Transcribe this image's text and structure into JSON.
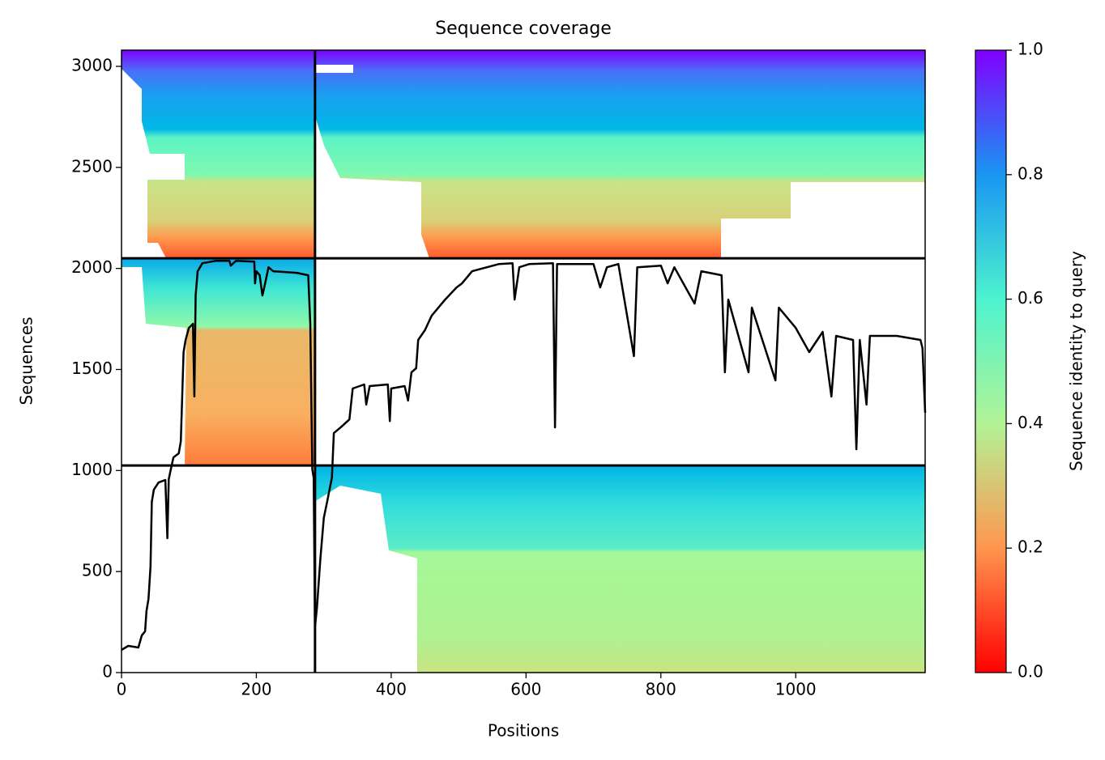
{
  "chart_data": {
    "type": "line",
    "title": "Sequence coverage",
    "x_label": "Positions",
    "y_label": "Sequences",
    "color": "#000000",
    "xlim": [
      0,
      1192
    ],
    "ylim": [
      0,
      3080
    ],
    "xticks": [
      0,
      200,
      400,
      600,
      800,
      1000
    ],
    "yticks": [
      0,
      500,
      1000,
      1500,
      2000,
      2500,
      3000
    ],
    "chain_breaks": {
      "x": [
        287
      ],
      "y": [
        1025,
        2050
      ]
    },
    "x": [
      0,
      10,
      25,
      30,
      35,
      37,
      40,
      43,
      45,
      48,
      55,
      65,
      68,
      70,
      73,
      77,
      85,
      88,
      92,
      95,
      100,
      106,
      108,
      110,
      113,
      120,
      140,
      160,
      162,
      170,
      197,
      198,
      200,
      205,
      209,
      213,
      218,
      225,
      260,
      277,
      280,
      283,
      285,
      287,
      290,
      295,
      300,
      305,
      312,
      315,
      325,
      338,
      343,
      360,
      363,
      368,
      395,
      398,
      400,
      420,
      425,
      430,
      437,
      440,
      450,
      460,
      480,
      497,
      505,
      520,
      560,
      580,
      583,
      590,
      605,
      640,
      643,
      646,
      700,
      710,
      720,
      737,
      760,
      765,
      800,
      810,
      820,
      850,
      860,
      890,
      895,
      900,
      930,
      935,
      970,
      975,
      1000,
      1020,
      1040,
      1053,
      1060,
      1085,
      1090,
      1095,
      1105,
      1110,
      1150,
      1185,
      1188,
      1192
    ],
    "values": [
      112,
      132,
      124,
      184,
      204,
      304,
      364,
      525,
      845,
      905,
      941,
      953,
      665,
      957,
      1005,
      1065,
      1085,
      1145,
      1586,
      1646,
      1706,
      1726,
      1366,
      1866,
      1986,
      2026,
      2038,
      2038,
      2014,
      2038,
      2034,
      1926,
      1986,
      1966,
      1866,
      1926,
      2006,
      1986,
      1978,
      1966,
      1726,
      1005,
      965,
      224,
      324,
      565,
      765,
      845,
      965,
      1185,
      1213,
      1253,
      1406,
      1426,
      1326,
      1418,
      1426,
      1245,
      1406,
      1418,
      1346,
      1486,
      1506,
      1646,
      1694,
      1766,
      1846,
      1906,
      1926,
      1986,
      2022,
      2026,
      1846,
      2006,
      2022,
      2026,
      1213,
      2022,
      2022,
      1906,
      2006,
      2022,
      1566,
      2006,
      2014,
      1926,
      2006,
      1826,
      1986,
      1966,
      1486,
      1846,
      1486,
      1806,
      1446,
      1806,
      1706,
      1586,
      1686,
      1366,
      1666,
      1646,
      1105,
      1646,
      1326,
      1666,
      1666,
      1646,
      1606,
      1286
    ],
    "colorbar": {
      "label": "Sequence identity to query",
      "lim": [
        0,
        1
      ],
      "ticks": [
        {
          "value": 0,
          "label": "0.0"
        },
        {
          "value": 0.2,
          "label": "0.2"
        },
        {
          "value": 0.4,
          "label": "0.4"
        },
        {
          "value": 0.6,
          "label": "0.6"
        },
        {
          "value": 0.8,
          "label": "0.8"
        },
        {
          "value": 1,
          "label": "1.0"
        }
      ]
    }
  }
}
